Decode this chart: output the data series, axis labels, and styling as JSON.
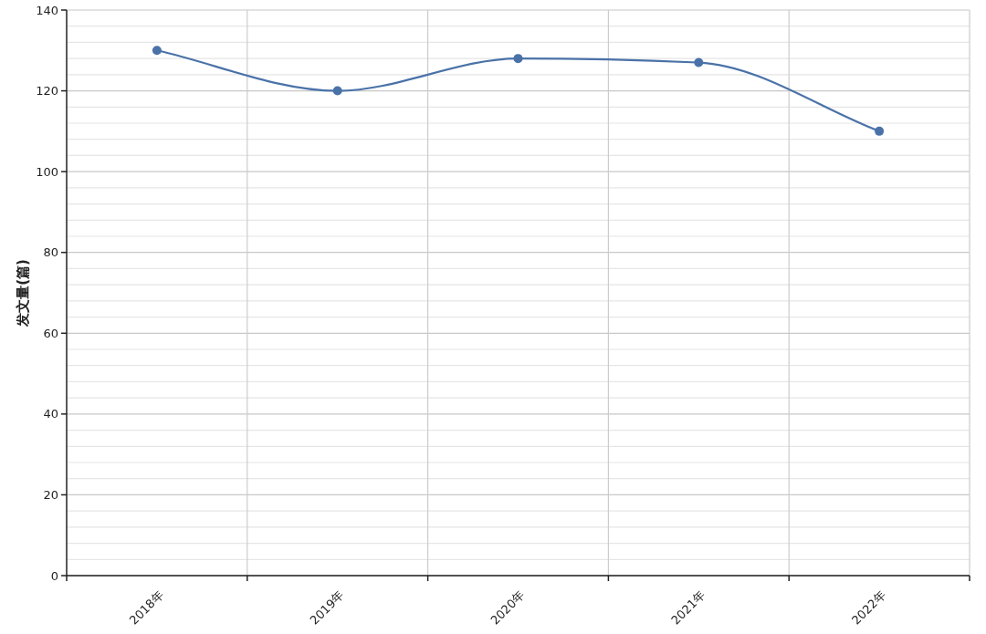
{
  "chart_data": {
    "type": "line",
    "ylabel": "发文量(篇)",
    "categories": [
      "2018年",
      "2019年",
      "2020年",
      "2021年",
      "2022年"
    ],
    "series": [
      {
        "color": "#4a72a8",
        "values": [
          130,
          120,
          128,
          127,
          110
        ]
      }
    ],
    "ylim": [
      0,
      140
    ],
    "yticks": [
      0,
      {
        "value": 4,
        "label": null
      },
      {
        "value": 8,
        "label": null
      },
      {
        "value": 12,
        "label": null
      },
      {
        "value": 16,
        "label": null
      },
      20,
      {
        "value": 24,
        "label": null
      },
      {
        "value": 28,
        "label": null
      },
      {
        "value": 32,
        "label": null
      },
      {
        "value": 36,
        "label": null
      },
      40,
      {
        "value": 44,
        "label": null
      },
      {
        "value": 48,
        "label": null
      },
      {
        "value": 52,
        "label": null
      },
      {
        "value": 56,
        "label": null
      },
      60,
      {
        "value": 64,
        "label": null
      },
      {
        "value": 68,
        "label": null
      },
      {
        "value": 72,
        "label": null
      },
      {
        "value": 76,
        "label": null
      },
      80,
      {
        "value": 84,
        "label": null
      },
      {
        "value": 88,
        "label": null
      },
      {
        "value": 92,
        "label": null
      },
      {
        "value": 96,
        "label": null
      },
      100,
      {
        "value": 104,
        "label": null
      },
      {
        "value": 108,
        "label": null
      },
      {
        "value": 112,
        "label": null
      },
      {
        "value": 116,
        "label": null
      },
      120,
      {
        "value": 124,
        "label": null
      },
      {
        "value": 128,
        "label": null
      },
      {
        "value": 132,
        "label": null
      },
      {
        "value": 136,
        "label": null
      },
      140
    ],
    "grid": true,
    "marker": "circle",
    "line_style": "solid"
  }
}
